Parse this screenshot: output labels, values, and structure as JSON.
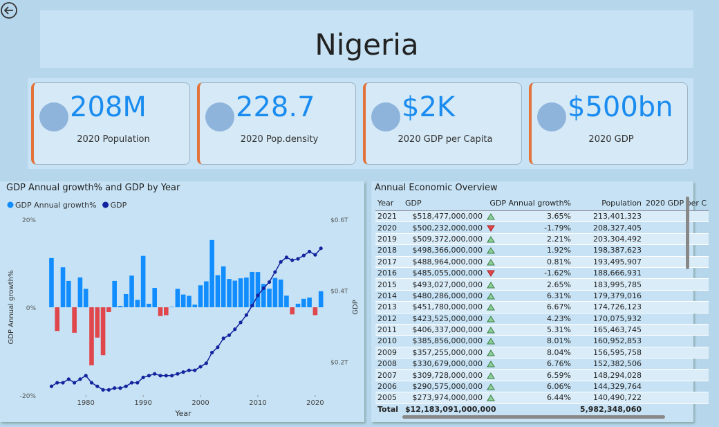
{
  "header": {
    "title": "Nigeria"
  },
  "kpis": [
    {
      "value": "208M",
      "label": "2020 Population"
    },
    {
      "value": "228.7",
      "label": "2020 Pop.density"
    },
    {
      "value": "$2K",
      "label": "2020 GDP per Capita"
    },
    {
      "value": "$500bn",
      "label": "2020 GDP"
    }
  ],
  "chart_data": {
    "type": "combo",
    "title": "GDP Annual growth% and GDP by Year",
    "x_label": "Year",
    "y_label": "GDP Annual growth%",
    "y2_label": "GDP",
    "x": [
      1974,
      1975,
      1976,
      1977,
      1978,
      1979,
      1980,
      1981,
      1982,
      1983,
      1984,
      1985,
      1986,
      1987,
      1988,
      1989,
      1990,
      1991,
      1992,
      1993,
      1994,
      1995,
      1996,
      1997,
      1998,
      1999,
      2000,
      2001,
      2002,
      2003,
      2004,
      2005,
      2006,
      2007,
      2008,
      2009,
      2010,
      2011,
      2012,
      2013,
      2014,
      2015,
      2016,
      2017,
      2018,
      2019,
      2020,
      2021
    ],
    "xlim": [
      1972.5,
      2021.7
    ],
    "xticks": [
      1980,
      1990,
      2000,
      2010,
      2020
    ],
    "ylim": [
      -20,
      20
    ],
    "yticks": [
      {
        "value": -20,
        "label": "-20%"
      },
      {
        "value": 0,
        "label": "0%"
      },
      {
        "value": 20,
        "label": "20%"
      }
    ],
    "y2lim": [
      105000000000,
      600000000000
    ],
    "y2ticks": [
      {
        "value": 200000000000,
        "label": "$0.2T"
      },
      {
        "value": 400000000000,
        "label": "$0.4T"
      },
      {
        "value": 600000000000,
        "label": "$0.6T"
      }
    ],
    "legend": "top-left",
    "series": [
      {
        "name": "GDP Annual growth%",
        "kind": "bar",
        "color": "#118dff",
        "negative_color": "#e0474c",
        "values": [
          11.2,
          -5.4,
          9.1,
          6.0,
          -5.8,
          6.8,
          4.2,
          -13.2,
          -6.9,
          -10.9,
          -1.1,
          6.0,
          0.3,
          3.0,
          7.2,
          1.7,
          11.7,
          0.8,
          4.4,
          -2.0,
          -1.8,
          0.1,
          4.2,
          2.9,
          2.6,
          0.6,
          5.0,
          5.9,
          15.3,
          7.3,
          9.3,
          6.44,
          6.06,
          6.59,
          6.76,
          8.04,
          8.01,
          5.31,
          4.23,
          6.67,
          6.31,
          2.65,
          -1.62,
          0.81,
          1.92,
          2.21,
          -1.79,
          3.65
        ]
      },
      {
        "name": "GDP",
        "kind": "line",
        "axis": "y2",
        "color": "#12239e",
        "values": [
          130000000000,
          140000000000,
          140000000000,
          150000000000,
          140000000000,
          150000000000,
          160000000000,
          140000000000,
          130000000000,
          120000000000,
          120000000000,
          125000000000,
          125000000000,
          130000000000,
          140000000000,
          140000000000,
          155000000000,
          160000000000,
          165000000000,
          160000000000,
          160000000000,
          160000000000,
          165000000000,
          170000000000,
          175000000000,
          175000000000,
          185000000000,
          195000000000,
          225000000000,
          240000000000,
          265000000000,
          273974000000,
          290575000000,
          309728000000,
          330679000000,
          357255000000,
          385856000000,
          406337000000,
          423525000000,
          451780000000,
          480286000000,
          493027000000,
          485055000000,
          488964000000,
          498366000000,
          509372000000,
          500232000000,
          518477000000
        ]
      }
    ]
  },
  "table": {
    "title": "Annual Economic Overview",
    "columns": [
      "Year",
      "GDP",
      "GDP Annual growth%",
      "Population",
      "2020 GDP per C"
    ],
    "rows": [
      [
        "2021",
        "$518,477,000,000",
        "3.65%",
        "213,401,323"
      ],
      [
        "2020",
        "$500,232,000,000",
        "-1.79%",
        "208,327,405"
      ],
      [
        "2019",
        "$509,372,000,000",
        "2.21%",
        "203,304,492"
      ],
      [
        "2018",
        "$498,366,000,000",
        "1.92%",
        "198,387,623"
      ],
      [
        "2017",
        "$488,964,000,000",
        "0.81%",
        "193,495,907"
      ],
      [
        "2016",
        "$485,055,000,000",
        "-1.62%",
        "188,666,931"
      ],
      [
        "2015",
        "$493,027,000,000",
        "2.65%",
        "183,995,785"
      ],
      [
        "2014",
        "$480,286,000,000",
        "6.31%",
        "179,379,016"
      ],
      [
        "2013",
        "$451,780,000,000",
        "6.67%",
        "174,726,123"
      ],
      [
        "2012",
        "$423,525,000,000",
        "4.23%",
        "170,075,932"
      ],
      [
        "2011",
        "$406,337,000,000",
        "5.31%",
        "165,463,745"
      ],
      [
        "2010",
        "$385,856,000,000",
        "8.01%",
        "160,952,853"
      ],
      [
        "2009",
        "$357,255,000,000",
        "8.04%",
        "156,595,758"
      ],
      [
        "2008",
        "$330,679,000,000",
        "6.76%",
        "152,382,506"
      ],
      [
        "2007",
        "$309,728,000,000",
        "6.59%",
        "148,294,028"
      ],
      [
        "2006",
        "$290,575,000,000",
        "6.06%",
        "144,329,764"
      ],
      [
        "2005",
        "$273,974,000,000",
        "6.44%",
        "140,490,722"
      ]
    ],
    "total": [
      "Total",
      "$12,183,091,000,000",
      "5,982,348,060"
    ]
  }
}
